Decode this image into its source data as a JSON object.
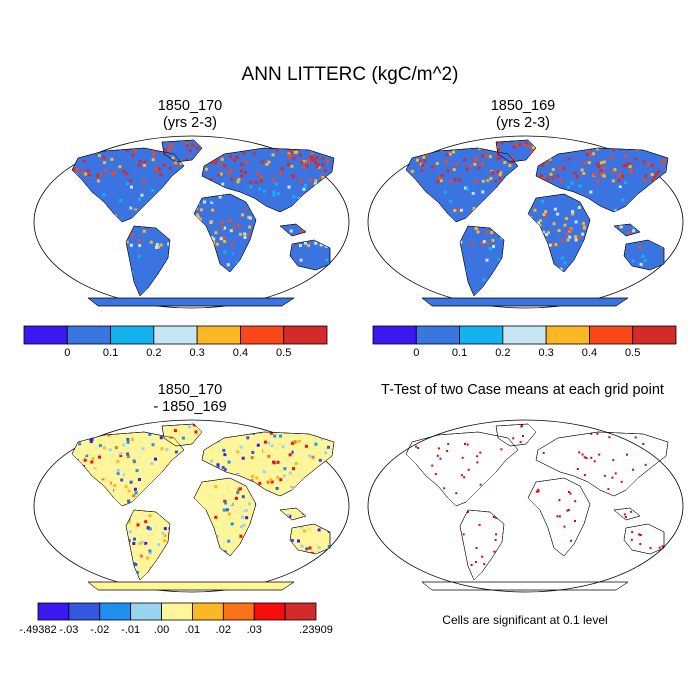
{
  "title": "ANN LITTERC (kgC/m^2)",
  "panels": {
    "top_left": {
      "title_line1": "1850_170",
      "title_line2": "(yrs 2-3)"
    },
    "top_right": {
      "title_line1": "1850_169",
      "title_line2": "(yrs 2-3)"
    },
    "bottom_left": {
      "title_line1": "1850_170",
      "title_line2": "- 1850_169"
    },
    "bottom_right": {
      "title_line1": "T-Test of two Case means at each grid point"
    }
  },
  "colorbar_top": {
    "colors": [
      "#3b17f0",
      "#3876e0",
      "#14b3ee",
      "#c5e6f2",
      "#fbb724",
      "#f94818",
      "#d42a2a"
    ],
    "labels": [
      "0",
      "0.1",
      "0.2",
      "0.3",
      "0.4",
      "0.5"
    ]
  },
  "colorbar_bottom": {
    "colors": [
      "#3b17f0",
      "#3457e0",
      "#1f8ff0",
      "#9ad4f2",
      "#fff59a",
      "#fbb724",
      "#f97316",
      "#f80d0d",
      "#d42a2a"
    ],
    "labels": [
      "-.49382",
      "-.03",
      "-.02",
      "-.01",
      ".00",
      ".01",
      ".02",
      ".03",
      ".23909"
    ]
  },
  "significance_note": "Cells are significant at 0.1 level",
  "colors": {
    "land_base": "#3b73e0",
    "diff_base": "#fff59a",
    "significant": "#e00000",
    "antarctica": "#3b73e0"
  }
}
